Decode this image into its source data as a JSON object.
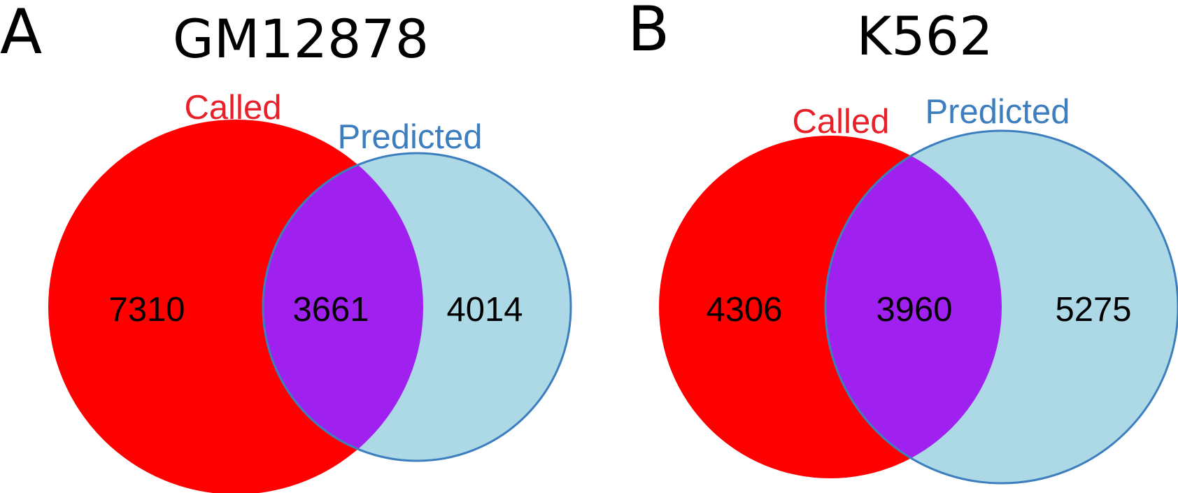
{
  "colors": {
    "called": "#ff0000",
    "predicted": "#add8e6",
    "overlap": "#a020f0",
    "called_label": "#e8202a",
    "predicted_label": "#3d7ebf",
    "predicted_outline": "#3d7ebf"
  },
  "panels": [
    {
      "letter": "A",
      "title": "GM12878",
      "sets": {
        "called": "Called",
        "predicted": "Predicted"
      },
      "counts": {
        "called_only": "7310",
        "overlap": "3661",
        "predicted_only": "4014"
      }
    },
    {
      "letter": "B",
      "title": "K562",
      "sets": {
        "called": "Called",
        "predicted": "Predicted"
      },
      "counts": {
        "called_only": "4306",
        "overlap": "3960",
        "predicted_only": "5275"
      }
    }
  ]
}
